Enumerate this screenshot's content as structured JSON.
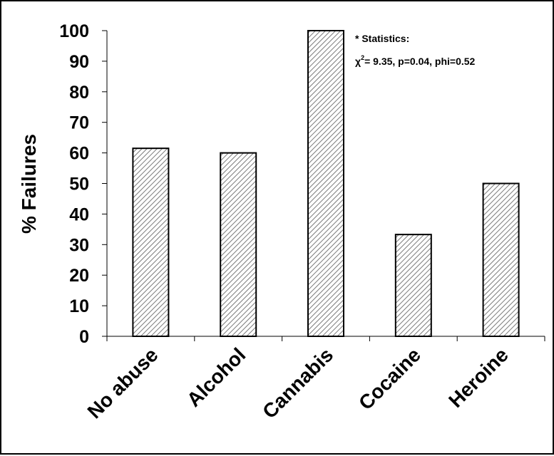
{
  "chart_data": {
    "type": "bar",
    "title": "",
    "xlabel": "",
    "ylabel": "% Failures",
    "ylim": [
      0,
      100
    ],
    "yticks": [
      0,
      10,
      20,
      30,
      40,
      50,
      60,
      70,
      80,
      90,
      100
    ],
    "categories": [
      "No abuse",
      "Alcohol",
      "Cannabis",
      "Cocaine",
      "Heroine"
    ],
    "values": [
      61.5,
      60,
      100,
      33.3,
      50
    ],
    "bar_fill": "hatched",
    "colors": {
      "bar_stroke": "#000000",
      "hatch": "#7a7a7a",
      "background": "#ffffff"
    },
    "grid": false,
    "legend": "none",
    "annotations": {
      "heading": "* Statistics:",
      "chi_symbol": "χ",
      "chi_exponent": "2",
      "stats_text": "= 9.35, p=0.04, phi=0.52"
    }
  }
}
